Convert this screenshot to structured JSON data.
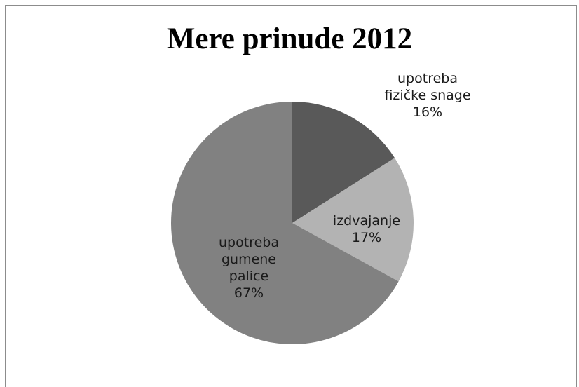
{
  "chart_data": {
    "type": "pie",
    "title": "Mere prinude 2012",
    "start_angle_deg": 0,
    "direction": "clockwise",
    "slices": [
      {
        "label_lines": [
          "upotreba",
          "fizičke snage"
        ],
        "percent_label": "16%",
        "value": 16,
        "color": "#595959"
      },
      {
        "label_lines": [
          "izdvajanje"
        ],
        "percent_label": "17%",
        "value": 17,
        "color": "#b3b3b3"
      },
      {
        "label_lines": [
          "upotreba",
          "gumene",
          "palice"
        ],
        "percent_label": "67%",
        "value": 67,
        "color": "#818181"
      }
    ]
  }
}
